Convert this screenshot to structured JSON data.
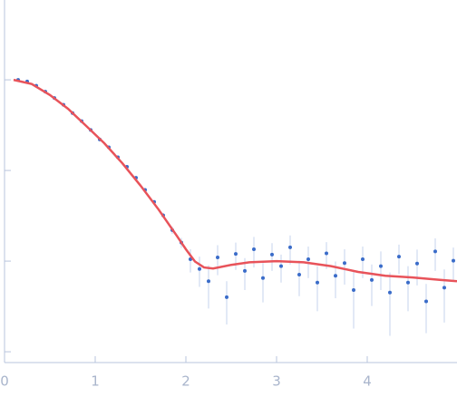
{
  "chart_data": {
    "type": "scatter",
    "log_scale_y": true,
    "ytick_labels": false,
    "axis_color": "#b8c4dc",
    "xlim": [
      0,
      4.99
    ],
    "xticks": [
      0,
      1,
      2,
      3,
      4
    ],
    "ylim": [
      0.00076,
      7.6
    ],
    "yticks": [
      0.001,
      0.01,
      0.1,
      1
    ],
    "points": {
      "color": "#3a6cc9",
      "error_color": "#c5d3ee",
      "x": [
        0.15,
        0.25,
        0.35,
        0.45,
        0.55,
        0.65,
        0.75,
        0.85,
        0.95,
        1.05,
        1.15,
        1.25,
        1.35,
        1.45,
        1.55,
        1.65,
        1.75,
        1.85,
        1.95,
        2.05,
        2.15,
        2.25,
        2.35,
        2.45,
        2.55,
        2.65,
        2.75,
        2.85,
        2.95,
        3.05,
        3.15,
        3.25,
        3.35,
        3.45,
        3.55,
        3.65,
        3.75,
        3.85,
        3.95,
        4.05,
        4.15,
        4.25,
        4.35,
        4.45,
        4.55,
        4.65,
        4.75,
        4.85,
        4.95
      ],
      "values": [
        1.0,
        0.96,
        0.86,
        0.74,
        0.63,
        0.53,
        0.43,
        0.35,
        0.28,
        0.22,
        0.18,
        0.14,
        0.11,
        0.083,
        0.061,
        0.045,
        0.032,
        0.022,
        0.016,
        0.0105,
        0.0082,
        0.006,
        0.011,
        0.004,
        0.012,
        0.0078,
        0.0135,
        0.0065,
        0.0118,
        0.0088,
        0.0142,
        0.0071,
        0.0105,
        0.0058,
        0.0122,
        0.0069,
        0.0095,
        0.0048,
        0.0105,
        0.0062,
        0.0088,
        0.0045,
        0.0112,
        0.0058,
        0.0094,
        0.0036,
        0.0128,
        0.0051,
        0.0101
      ],
      "errors": [
        0.02,
        0.02,
        0.017,
        0.015,
        0.013,
        0.011,
        0.009,
        0.007,
        0.006,
        0.005,
        0.004,
        0.004,
        0.003,
        0.003,
        0.002,
        0.002,
        0.002,
        0.002,
        0.002,
        0.003,
        0.003,
        0.003,
        0.004,
        0.002,
        0.004,
        0.003,
        0.005,
        0.003,
        0.004,
        0.003,
        0.005,
        0.003,
        0.004,
        0.003,
        0.004,
        0.003,
        0.004,
        0.003,
        0.004,
        0.003,
        0.004,
        0.003,
        0.004,
        0.003,
        0.004,
        0.002,
        0.005,
        0.003,
        0.004
      ]
    },
    "fit": {
      "color": "#e8535a",
      "x": [
        0.1,
        0.3,
        0.5,
        0.7,
        0.9,
        1.1,
        1.3,
        1.5,
        1.7,
        1.9,
        2.0,
        2.1,
        2.2,
        2.3,
        2.5,
        2.7,
        3.0,
        3.3,
        3.6,
        3.9,
        4.2,
        4.5,
        4.8,
        4.99
      ],
      "values": [
        1.0,
        0.9,
        0.68,
        0.48,
        0.31,
        0.2,
        0.12,
        0.068,
        0.037,
        0.019,
        0.0135,
        0.0099,
        0.0085,
        0.0083,
        0.0091,
        0.0097,
        0.01,
        0.0097,
        0.0088,
        0.0076,
        0.0069,
        0.0066,
        0.0062,
        0.006
      ]
    }
  }
}
